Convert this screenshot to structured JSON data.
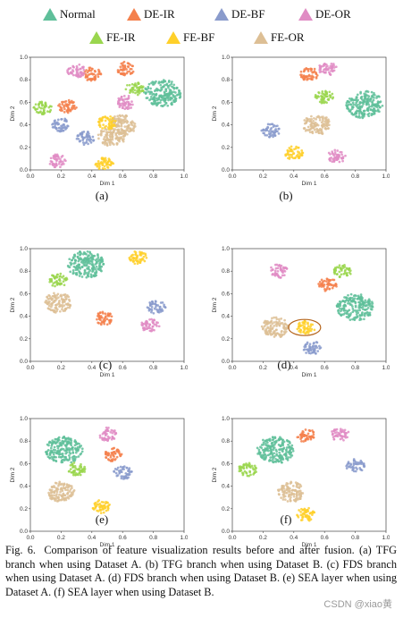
{
  "legend": [
    {
      "name": "Normal",
      "color": "#5fbf9a"
    },
    {
      "name": "DE-IR",
      "color": "#f4804c"
    },
    {
      "name": "DE-BF",
      "color": "#8a9bcc"
    },
    {
      "name": "DE-OR",
      "color": "#e08cc4"
    },
    {
      "name": "FE-IR",
      "color": "#9ad64e"
    },
    {
      "name": "FE-BF",
      "color": "#ffd02a"
    },
    {
      "name": "FE-OR",
      "color": "#ddbf95"
    }
  ],
  "axes": {
    "xlabel": "Dim 1",
    "ylabel": "Dim 2",
    "ticks": [
      "0.0",
      "0.2",
      "0.4",
      "0.6",
      "0.8",
      "1.0"
    ]
  },
  "panels": [
    {
      "label": "(a)"
    },
    {
      "label": "(b)"
    },
    {
      "label": "(c)"
    },
    {
      "label": "(d)"
    },
    {
      "label": "(e)"
    },
    {
      "label": "(f)"
    }
  ],
  "caption": {
    "fig": "Fig. 6.",
    "text": "Comparison of feature visualization results before and after fusion. (a) TFG branch when using Dataset A. (b) TFG branch when using Dataset B. (c) FDS branch when using Dataset A. (d) FDS branch when using Dataset B. (e) SEA layer when using Dataset A. (f) SEA layer when using Dataset B."
  },
  "watermark": "CSDN @xiao黄",
  "chart_data": [
    {
      "type": "scatter",
      "panel": "(a)",
      "xlabel": "Dim 1",
      "ylabel": "Dim 2",
      "xlim": [
        0,
        1
      ],
      "ylim": [
        0,
        1
      ],
      "clusters": [
        {
          "class": "Normal",
          "x": 0.86,
          "y": 0.68
        },
        {
          "class": "FE-OR",
          "x": 0.53,
          "y": 0.3
        },
        {
          "class": "FE-OR",
          "x": 0.6,
          "y": 0.4
        },
        {
          "class": "FE-BF",
          "x": 0.5,
          "y": 0.42
        },
        {
          "class": "FE-BF",
          "x": 0.48,
          "y": 0.06
        },
        {
          "class": "DE-IR",
          "x": 0.24,
          "y": 0.56
        },
        {
          "class": "DE-IR",
          "x": 0.4,
          "y": 0.85
        },
        {
          "class": "DE-IR",
          "x": 0.62,
          "y": 0.9
        },
        {
          "class": "DE-OR",
          "x": 0.18,
          "y": 0.08
        },
        {
          "class": "DE-OR",
          "x": 0.3,
          "y": 0.88
        },
        {
          "class": "DE-OR",
          "x": 0.62,
          "y": 0.6
        },
        {
          "class": "DE-BF",
          "x": 0.2,
          "y": 0.4
        },
        {
          "class": "DE-BF",
          "x": 0.36,
          "y": 0.28
        },
        {
          "class": "FE-IR",
          "x": 0.68,
          "y": 0.72
        },
        {
          "class": "FE-IR",
          "x": 0.08,
          "y": 0.55
        }
      ]
    },
    {
      "type": "scatter",
      "panel": "(b)",
      "xlabel": "Dim 1",
      "ylabel": "Dim 2",
      "xlim": [
        0,
        1
      ],
      "ylim": [
        0,
        1
      ],
      "clusters": [
        {
          "class": "Normal",
          "x": 0.86,
          "y": 0.58
        },
        {
          "class": "DE-IR",
          "x": 0.5,
          "y": 0.85
        },
        {
          "class": "DE-OR",
          "x": 0.62,
          "y": 0.9
        },
        {
          "class": "FE-BF",
          "x": 0.4,
          "y": 0.15
        },
        {
          "class": "FE-OR",
          "x": 0.55,
          "y": 0.4
        },
        {
          "class": "DE-BF",
          "x": 0.25,
          "y": 0.35
        },
        {
          "class": "FE-IR",
          "x": 0.6,
          "y": 0.65
        },
        {
          "class": "DE-OR",
          "x": 0.68,
          "y": 0.12
        }
      ]
    },
    {
      "type": "scatter",
      "panel": "(c)",
      "xlabel": "Dim 1",
      "ylabel": "Dim 2",
      "xlim": [
        0,
        1
      ],
      "ylim": [
        0,
        1
      ],
      "clusters": [
        {
          "class": "Normal",
          "x": 0.36,
          "y": 0.86
        },
        {
          "class": "FE-BF",
          "x": 0.7,
          "y": 0.92
        },
        {
          "class": "FE-OR",
          "x": 0.18,
          "y": 0.52
        },
        {
          "class": "DE-BF",
          "x": 0.82,
          "y": 0.48
        },
        {
          "class": "DE-OR",
          "x": 0.78,
          "y": 0.32
        },
        {
          "class": "FE-IR",
          "x": 0.18,
          "y": 0.72
        },
        {
          "class": "DE-IR",
          "x": 0.48,
          "y": 0.38
        }
      ]
    },
    {
      "type": "scatter",
      "panel": "(d)",
      "xlabel": "Dim 1",
      "ylabel": "Dim 2",
      "xlim": [
        0,
        1
      ],
      "ylim": [
        0,
        1
      ],
      "clusters": [
        {
          "class": "Normal",
          "x": 0.8,
          "y": 0.48
        },
        {
          "class": "FE-OR",
          "x": 0.28,
          "y": 0.3
        },
        {
          "class": "FE-BF",
          "x": 0.48,
          "y": 0.3
        },
        {
          "class": "DE-IR",
          "x": 0.62,
          "y": 0.68
        },
        {
          "class": "DE-OR",
          "x": 0.3,
          "y": 0.8
        },
        {
          "class": "DE-BF",
          "x": 0.52,
          "y": 0.12
        },
        {
          "class": "FE-IR",
          "x": 0.72,
          "y": 0.8
        }
      ]
    },
    {
      "type": "scatter",
      "panel": "(e)",
      "xlabel": "Dim 1",
      "ylabel": "Dim 2",
      "xlim": [
        0,
        1
      ],
      "ylim": [
        0,
        1
      ],
      "clusters": [
        {
          "class": "Normal",
          "x": 0.22,
          "y": 0.72
        },
        {
          "class": "DE-OR",
          "x": 0.5,
          "y": 0.86
        },
        {
          "class": "DE-BF",
          "x": 0.6,
          "y": 0.52
        },
        {
          "class": "FE-OR",
          "x": 0.2,
          "y": 0.35
        },
        {
          "class": "FE-BF",
          "x": 0.46,
          "y": 0.22
        },
        {
          "class": "DE-IR",
          "x": 0.54,
          "y": 0.68
        },
        {
          "class": "FE-IR",
          "x": 0.3,
          "y": 0.55
        }
      ]
    },
    {
      "type": "scatter",
      "panel": "(f)",
      "xlabel": "Dim 1",
      "ylabel": "Dim 2",
      "xlim": [
        0,
        1
      ],
      "ylim": [
        0,
        1
      ],
      "clusters": [
        {
          "class": "Normal",
          "x": 0.28,
          "y": 0.72
        },
        {
          "class": "DE-IR",
          "x": 0.48,
          "y": 0.85
        },
        {
          "class": "DE-BF",
          "x": 0.8,
          "y": 0.58
        },
        {
          "class": "FE-OR",
          "x": 0.38,
          "y": 0.35
        },
        {
          "class": "FE-BF",
          "x": 0.48,
          "y": 0.15
        },
        {
          "class": "FE-IR",
          "x": 0.1,
          "y": 0.55
        },
        {
          "class": "DE-OR",
          "x": 0.7,
          "y": 0.86
        }
      ]
    }
  ]
}
